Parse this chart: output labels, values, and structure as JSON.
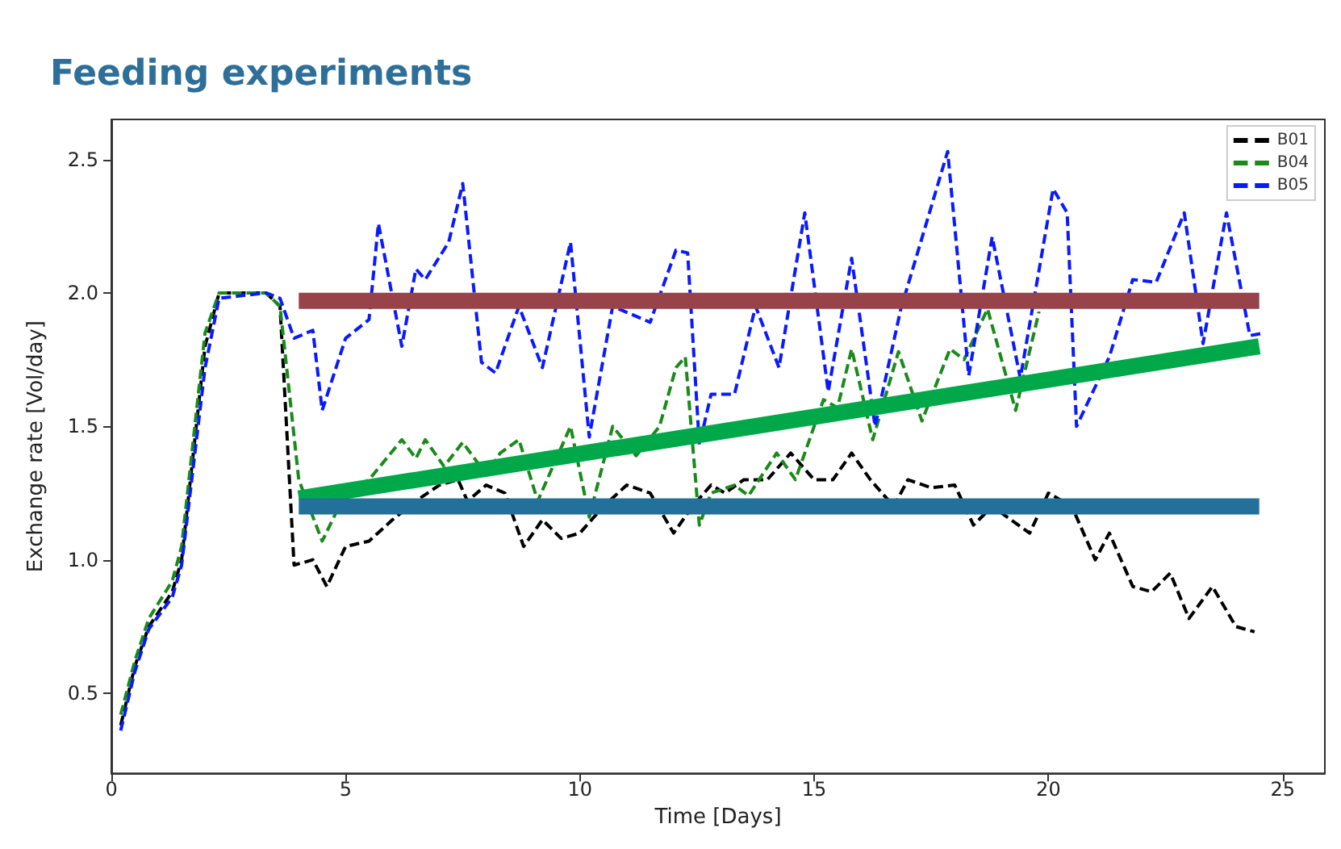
{
  "chart_data": {
    "type": "line",
    "title": "Feeding experiments",
    "xlabel": "Time [Days]",
    "ylabel": "Exchange rate [Vol/day]",
    "xlim": [
      0,
      25.9
    ],
    "ylim": [
      0.2,
      2.65
    ],
    "xticks": [
      0,
      5,
      10,
      15,
      20,
      25
    ],
    "yticks": [
      0.5,
      {
        "value": 1,
        "label": "1.0"
      },
      1.5,
      {
        "value": 2,
        "label": "2.0"
      },
      2.5
    ],
    "grid": false,
    "legend": "top right",
    "marker": "none",
    "series": [
      {
        "name": "B01",
        "color": "#000000",
        "line_style": "dashed",
        "x": [
          0.2,
          0.5,
          0.8,
          1.3,
          1.5,
          2.0,
          2.3,
          3.3,
          3.6,
          3.9,
          4.3,
          4.6,
          5.0,
          5.5,
          6.0,
          6.5,
          7.0,
          7.4,
          7.6,
          8.0,
          8.4,
          8.8,
          9.2,
          9.6,
          10.0,
          10.5,
          11.0,
          11.5,
          12.0,
          12.4,
          12.8,
          13.1,
          13.5,
          14.0,
          14.5,
          15.0,
          15.4,
          15.8,
          16.2,
          16.7,
          17.0,
          17.5,
          18.0,
          18.4,
          18.8,
          19.2,
          19.6,
          20.0,
          20.5,
          21.0,
          21.3,
          21.8,
          22.2,
          22.6,
          23.0,
          23.5,
          24.0,
          24.4
        ],
        "values": [
          0.38,
          0.6,
          0.75,
          0.88,
          1.0,
          1.8,
          2.0,
          2.0,
          1.95,
          0.98,
          1.0,
          0.9,
          1.05,
          1.07,
          1.15,
          1.22,
          1.28,
          1.3,
          1.22,
          1.28,
          1.25,
          1.05,
          1.15,
          1.08,
          1.1,
          1.2,
          1.28,
          1.25,
          1.1,
          1.2,
          1.28,
          1.25,
          1.3,
          1.3,
          1.4,
          1.3,
          1.3,
          1.4,
          1.3,
          1.2,
          1.3,
          1.27,
          1.28,
          1.13,
          1.2,
          1.15,
          1.1,
          1.25,
          1.2,
          1.0,
          1.1,
          0.9,
          0.88,
          0.95,
          0.78,
          0.9,
          0.75,
          0.73
        ]
      },
      {
        "name": "B04",
        "color": "#1a8a1a",
        "line_style": "dashed",
        "x": [
          0.2,
          0.5,
          0.8,
          1.3,
          1.5,
          2.0,
          2.3,
          3.3,
          3.6,
          4.0,
          4.5,
          5.0,
          5.5,
          6.2,
          6.5,
          6.7,
          7.1,
          7.5,
          8.0,
          8.3,
          8.7,
          9.1,
          9.8,
          10.2,
          10.7,
          11.2,
          11.7,
          12.05,
          12.25,
          12.55,
          12.8,
          13.3,
          13.6,
          14.2,
          14.6,
          15.2,
          15.5,
          15.8,
          16.25,
          16.8,
          17.3,
          17.9,
          18.2,
          18.7,
          19.3,
          19.8
        ],
        "values": [
          0.42,
          0.62,
          0.78,
          0.92,
          1.05,
          1.85,
          2.0,
          2.0,
          1.95,
          1.3,
          1.07,
          1.25,
          1.3,
          1.45,
          1.38,
          1.45,
          1.35,
          1.44,
          1.32,
          1.4,
          1.45,
          1.22,
          1.5,
          1.16,
          1.5,
          1.39,
          1.5,
          1.72,
          1.76,
          1.13,
          1.25,
          1.28,
          1.24,
          1.4,
          1.3,
          1.6,
          1.57,
          1.79,
          1.45,
          1.78,
          1.52,
          1.79,
          1.75,
          1.94,
          1.56,
          1.93
        ]
      },
      {
        "name": "B05",
        "color": "#0a1aff",
        "line_style": "dashed",
        "x": [
          0.2,
          0.5,
          0.8,
          1.3,
          1.5,
          2.0,
          2.3,
          3.3,
          3.6,
          3.9,
          4.3,
          4.5,
          5.0,
          5.5,
          5.7,
          6.2,
          6.5,
          6.7,
          7.2,
          7.5,
          7.9,
          8.2,
          8.7,
          9.2,
          9.8,
          10.2,
          10.7,
          11.5,
          12.05,
          12.3,
          12.55,
          12.8,
          13.3,
          13.75,
          14.25,
          14.8,
          15.3,
          15.8,
          16.3,
          16.85,
          17.85,
          18.3,
          18.8,
          19.4,
          20.1,
          20.4,
          20.6,
          21.3,
          21.8,
          22.3,
          22.9,
          23.3,
          23.8,
          24.3,
          24.6
        ],
        "values": [
          0.36,
          0.58,
          0.74,
          0.86,
          0.98,
          1.72,
          1.98,
          2.0,
          1.98,
          1.83,
          1.86,
          1.56,
          1.83,
          1.9,
          2.26,
          1.8,
          2.09,
          2.05,
          2.19,
          2.41,
          1.74,
          1.7,
          1.95,
          1.72,
          2.19,
          1.46,
          1.95,
          1.89,
          2.16,
          2.15,
          1.43,
          1.62,
          1.62,
          1.95,
          1.72,
          2.3,
          1.63,
          2.13,
          1.5,
          1.94,
          2.53,
          1.69,
          2.21,
          1.68,
          2.39,
          2.3,
          1.5,
          1.76,
          2.05,
          2.04,
          2.3,
          1.81,
          2.3,
          1.84,
          1.85
        ]
      },
      {
        "color": "#984349",
        "line_style": "solid",
        "x": [
          4.0,
          24.5
        ],
        "values": [
          1.97,
          1.97
        ]
      },
      {
        "color": "#00a84a",
        "line_style": "solid",
        "x": [
          4.0,
          24.5
        ],
        "values": [
          1.23,
          1.8
        ]
      },
      {
        "color": "#23719a",
        "line_style": "solid",
        "x": [
          4.0,
          24.5
        ],
        "values": [
          1.2,
          1.2
        ]
      }
    ]
  }
}
